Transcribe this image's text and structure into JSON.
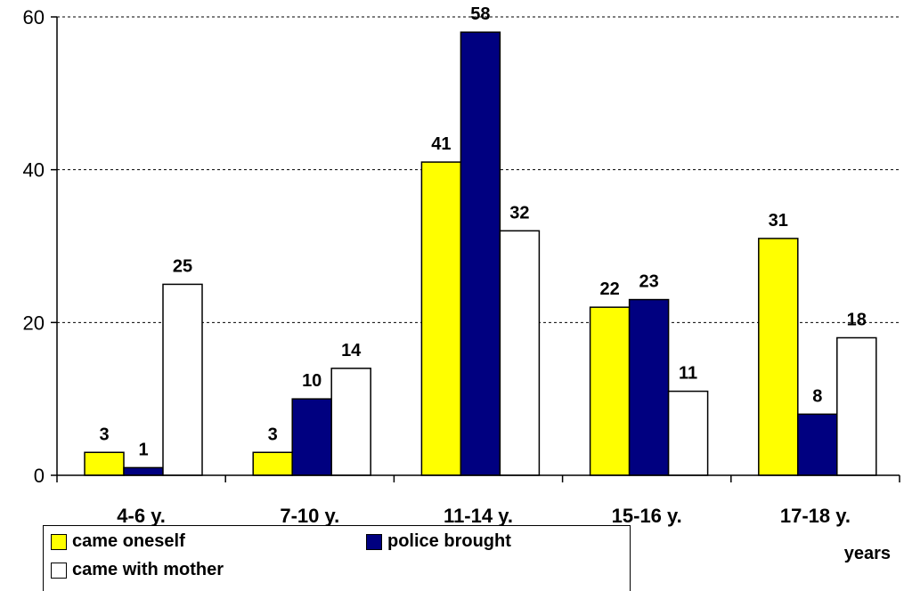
{
  "chart_data": {
    "type": "bar",
    "categories": [
      "4-6 y.",
      "7-10 y.",
      "11-14 y.",
      "15-16 y.",
      "17-18 y."
    ],
    "series": [
      {
        "name": "came oneself",
        "color": "#ffff00",
        "values": [
          3,
          3,
          41,
          22,
          31
        ]
      },
      {
        "name": "police brought",
        "color": "#000080",
        "values": [
          1,
          10,
          58,
          23,
          8
        ]
      },
      {
        "name": "came with mother",
        "color": "#ffffff",
        "values": [
          25,
          14,
          32,
          11,
          18
        ]
      }
    ],
    "xlabel": "years",
    "ylim": [
      0,
      60
    ],
    "yticks": [
      0,
      20,
      40,
      60
    ],
    "grid": "horizontal dotted",
    "legend_position": "bottom-left"
  }
}
